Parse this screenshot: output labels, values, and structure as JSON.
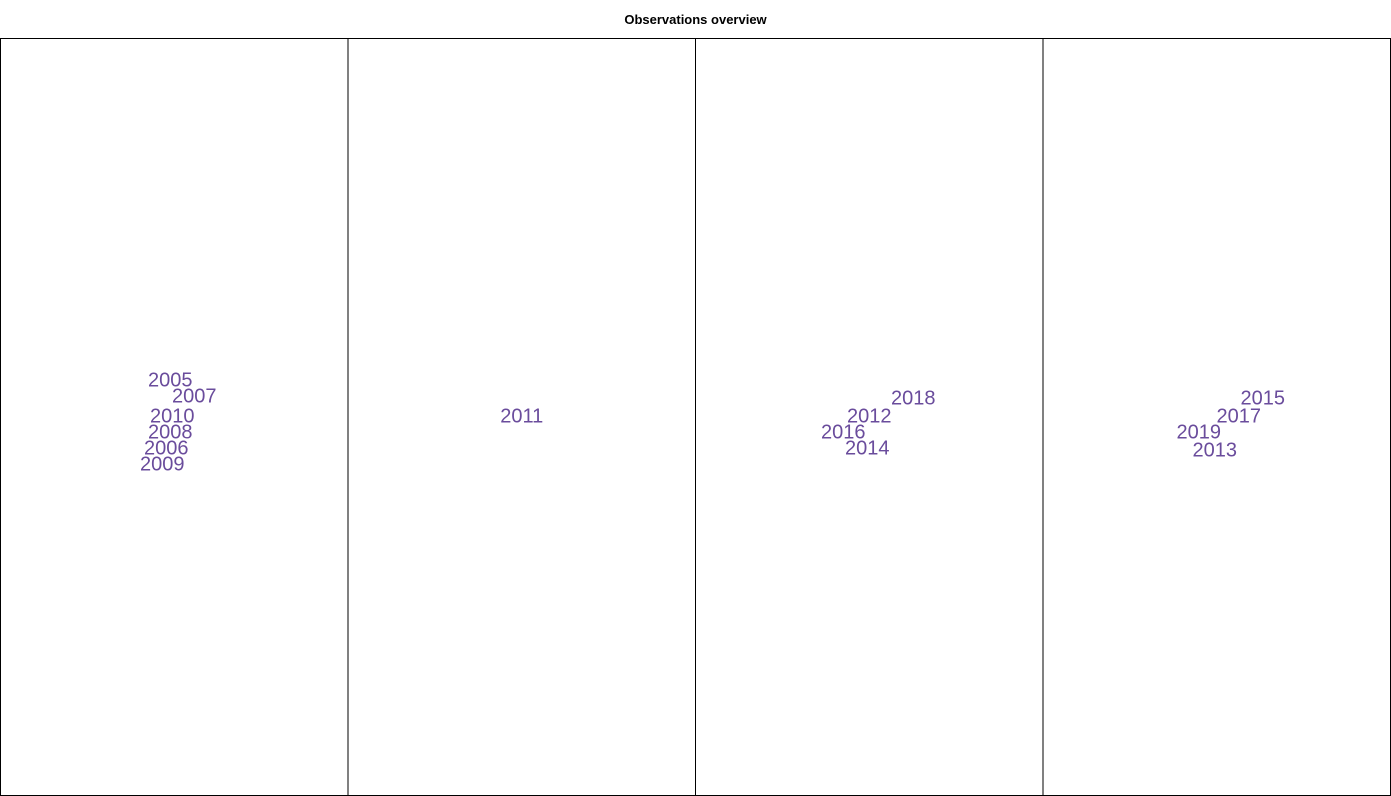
{
  "chart_data": {
    "type": "text-cluster",
    "title": "Observations overview",
    "label_color": "#6a4c9c",
    "frame_color": "#000000",
    "panels": [
      {
        "labels": [
          {
            "text": "2005",
            "x": -0.1,
            "y": 0.9
          },
          {
            "text": "2007",
            "x": 0.5,
            "y": 0.5
          },
          {
            "text": "2010",
            "x": -0.05,
            "y": 0.0
          },
          {
            "text": "2008",
            "x": -0.1,
            "y": -0.4
          },
          {
            "text": "2006",
            "x": -0.2,
            "y": -0.8
          },
          {
            "text": "2009",
            "x": -0.3,
            "y": -1.2
          }
        ]
      },
      {
        "labels": [
          {
            "text": "2011",
            "x": 0.0,
            "y": 0.0
          }
        ]
      },
      {
        "labels": [
          {
            "text": "2018",
            "x": 1.1,
            "y": 0.45
          },
          {
            "text": "2012",
            "x": 0.0,
            "y": 0.0
          },
          {
            "text": "2016",
            "x": -0.65,
            "y": -0.4
          },
          {
            "text": "2014",
            "x": -0.05,
            "y": -0.8
          }
        ]
      },
      {
        "labels": [
          {
            "text": "2015",
            "x": 1.15,
            "y": 0.45
          },
          {
            "text": "2017",
            "x": 0.55,
            "y": 0.0
          },
          {
            "text": "2019",
            "x": -0.45,
            "y": -0.4
          },
          {
            "text": "2013",
            "x": -0.05,
            "y": -0.85
          }
        ]
      }
    ]
  }
}
